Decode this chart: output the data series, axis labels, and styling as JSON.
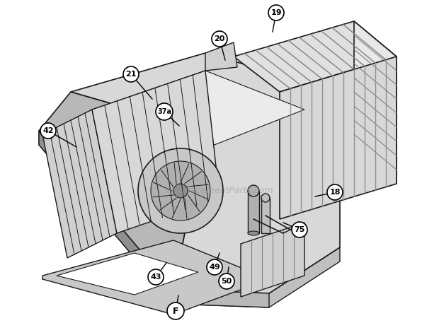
{
  "title": "",
  "bg_color": "#ffffff",
  "watermark": "eReplacementParts.com",
  "fig_width": 6.2,
  "fig_height": 4.74,
  "dpi": 100,
  "callout_params": [
    [
      "19",
      390,
      18,
      385,
      45,
      8,
      11
    ],
    [
      "20",
      310,
      55,
      318,
      85,
      8,
      11
    ],
    [
      "21",
      185,
      105,
      215,
      140,
      8,
      11
    ],
    [
      "37a",
      232,
      158,
      253,
      178,
      7,
      12
    ],
    [
      "42",
      68,
      185,
      108,
      208,
      8,
      11
    ],
    [
      "18",
      473,
      272,
      445,
      278,
      8,
      11
    ],
    [
      "75",
      423,
      325,
      400,
      315,
      8,
      11
    ],
    [
      "43",
      220,
      392,
      235,
      372,
      8,
      11
    ],
    [
      "49",
      303,
      378,
      310,
      358,
      8,
      11
    ],
    [
      "50",
      320,
      398,
      323,
      378,
      8,
      11
    ],
    [
      "F",
      248,
      440,
      252,
      418,
      9,
      12
    ]
  ]
}
